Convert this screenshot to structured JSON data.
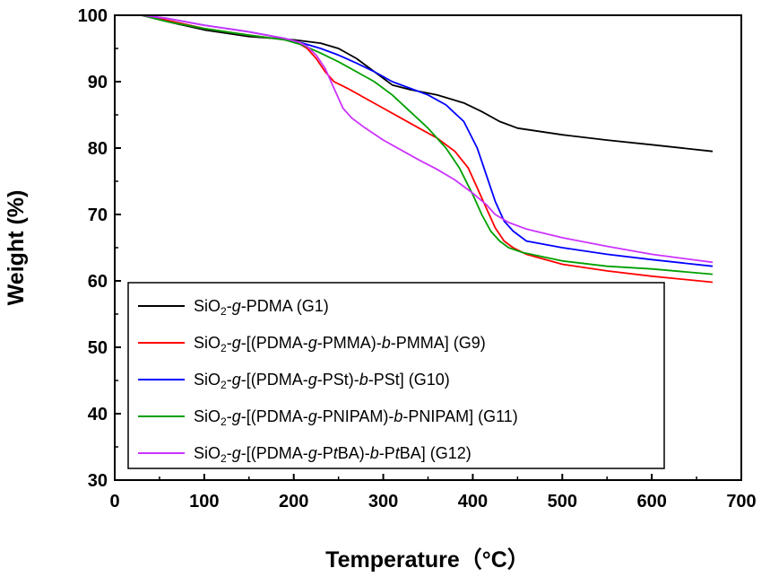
{
  "chart_data": {
    "type": "line",
    "title": "",
    "xlabel": "Temperature（°C）",
    "ylabel": "Weight (%)",
    "xlim": [
      0,
      700
    ],
    "ylim": [
      30,
      100
    ],
    "xticks": [
      "0",
      "100",
      "200",
      "300",
      "400",
      "500",
      "600",
      "700"
    ],
    "yticks": [
      "30",
      "40",
      "50",
      "60",
      "70",
      "80",
      "90",
      "100"
    ],
    "grid": false,
    "legend_position": "bottom-left",
    "series": [
      {
        "name": "G1",
        "label": {
          "a": "SiO",
          "sub": "2",
          "b": "-",
          "c": "g",
          "d": "-PDMA (G1)"
        },
        "color": "#000000",
        "x": [
          30,
          60,
          100,
          150,
          200,
          230,
          250,
          270,
          290,
          310,
          330,
          360,
          390,
          410,
          430,
          450,
          500,
          550,
          600,
          668
        ],
        "y": [
          100,
          99,
          97.8,
          96.8,
          96.3,
          95.8,
          95,
          93.5,
          91.5,
          89.5,
          88.8,
          88,
          86.8,
          85.5,
          84,
          83,
          82,
          81.2,
          80.5,
          79.5
        ]
      },
      {
        "name": "G9",
        "label": {
          "a": "SiO",
          "sub": "2",
          "b": "-",
          "c": "g",
          "d": "-[(PDMA-",
          "e": "g",
          "f": "-PMMA)-",
          "g": "b",
          "h": "-PMMA] (G9)"
        },
        "color": "#ff0000",
        "x": [
          30,
          60,
          100,
          150,
          190,
          205,
          215,
          225,
          235,
          245,
          260,
          280,
          300,
          320,
          340,
          360,
          380,
          395,
          405,
          415,
          425,
          435,
          445,
          460,
          500,
          550,
          600,
          668
        ],
        "y": [
          100,
          99.2,
          98,
          97,
          96.3,
          95.8,
          95,
          93.5,
          91.5,
          90,
          89,
          87.5,
          86,
          84.5,
          83,
          81.5,
          79.5,
          77,
          74,
          71,
          68,
          66,
          65,
          64,
          62.5,
          61.5,
          60.7,
          59.8
        ]
      },
      {
        "name": "G10",
        "label": {
          "a": "SiO",
          "sub": "2",
          "b": "-",
          "c": "g",
          "d": "-[(PDMA-",
          "e": "g",
          "f": "-PSt)-",
          "g": "b",
          "h": "-PSt] (G10)"
        },
        "color": "#0000ff",
        "x": [
          30,
          60,
          100,
          150,
          190,
          210,
          230,
          250,
          270,
          290,
          310,
          330,
          350,
          370,
          390,
          405,
          415,
          425,
          435,
          445,
          460,
          500,
          550,
          600,
          668
        ],
        "y": [
          100,
          99.5,
          98.5,
          97.5,
          96.5,
          95.8,
          95,
          94,
          92.8,
          91.5,
          90,
          89,
          88,
          86.5,
          84,
          80,
          76,
          72,
          69,
          67.5,
          66,
          65,
          64,
          63.2,
          62.2
        ]
      },
      {
        "name": "G11",
        "label": {
          "a": "SiO",
          "sub": "2",
          "b": "-",
          "c": "g",
          "d": "-[(PDMA-",
          "e": "g",
          "f": "-PNIPAM)-",
          "g": "b",
          "h": "-PNIPAM] (G11)"
        },
        "color": "#00a000",
        "x": [
          30,
          60,
          100,
          150,
          190,
          210,
          230,
          250,
          270,
          290,
          310,
          330,
          350,
          370,
          385,
          400,
          410,
          420,
          430,
          440,
          455,
          500,
          550,
          600,
          668
        ],
        "y": [
          100,
          99,
          98,
          97,
          96.3,
          95.5,
          94.3,
          93,
          91.5,
          90,
          88,
          85.5,
          83,
          80,
          77,
          73,
          70,
          67.5,
          66,
          65,
          64.3,
          63,
          62.2,
          61.8,
          61
        ]
      },
      {
        "name": "G12",
        "label": {
          "a": "SiO",
          "sub": "2",
          "b": "-",
          "c": "g",
          "d": "-[(PDMA-",
          "e": "g",
          "f": "-P",
          "g": "t",
          "h": "BA)-",
          "i": "b",
          "j": "-P",
          "k": "t",
          "l": "BA] (G12)"
        },
        "color": "#cc33ff",
        "x": [
          30,
          60,
          100,
          150,
          190,
          205,
          215,
          225,
          235,
          245,
          255,
          265,
          280,
          300,
          320,
          340,
          360,
          380,
          400,
          415,
          425,
          440,
          460,
          500,
          550,
          600,
          668
        ],
        "y": [
          100,
          99.5,
          98.5,
          97.5,
          96.5,
          96,
          95.3,
          94,
          92,
          89,
          86,
          84.5,
          83,
          81.2,
          79.7,
          78.2,
          76.8,
          75.2,
          73.2,
          71.5,
          70,
          68.8,
          67.8,
          66.5,
          65.2,
          64,
          62.8
        ]
      }
    ]
  }
}
